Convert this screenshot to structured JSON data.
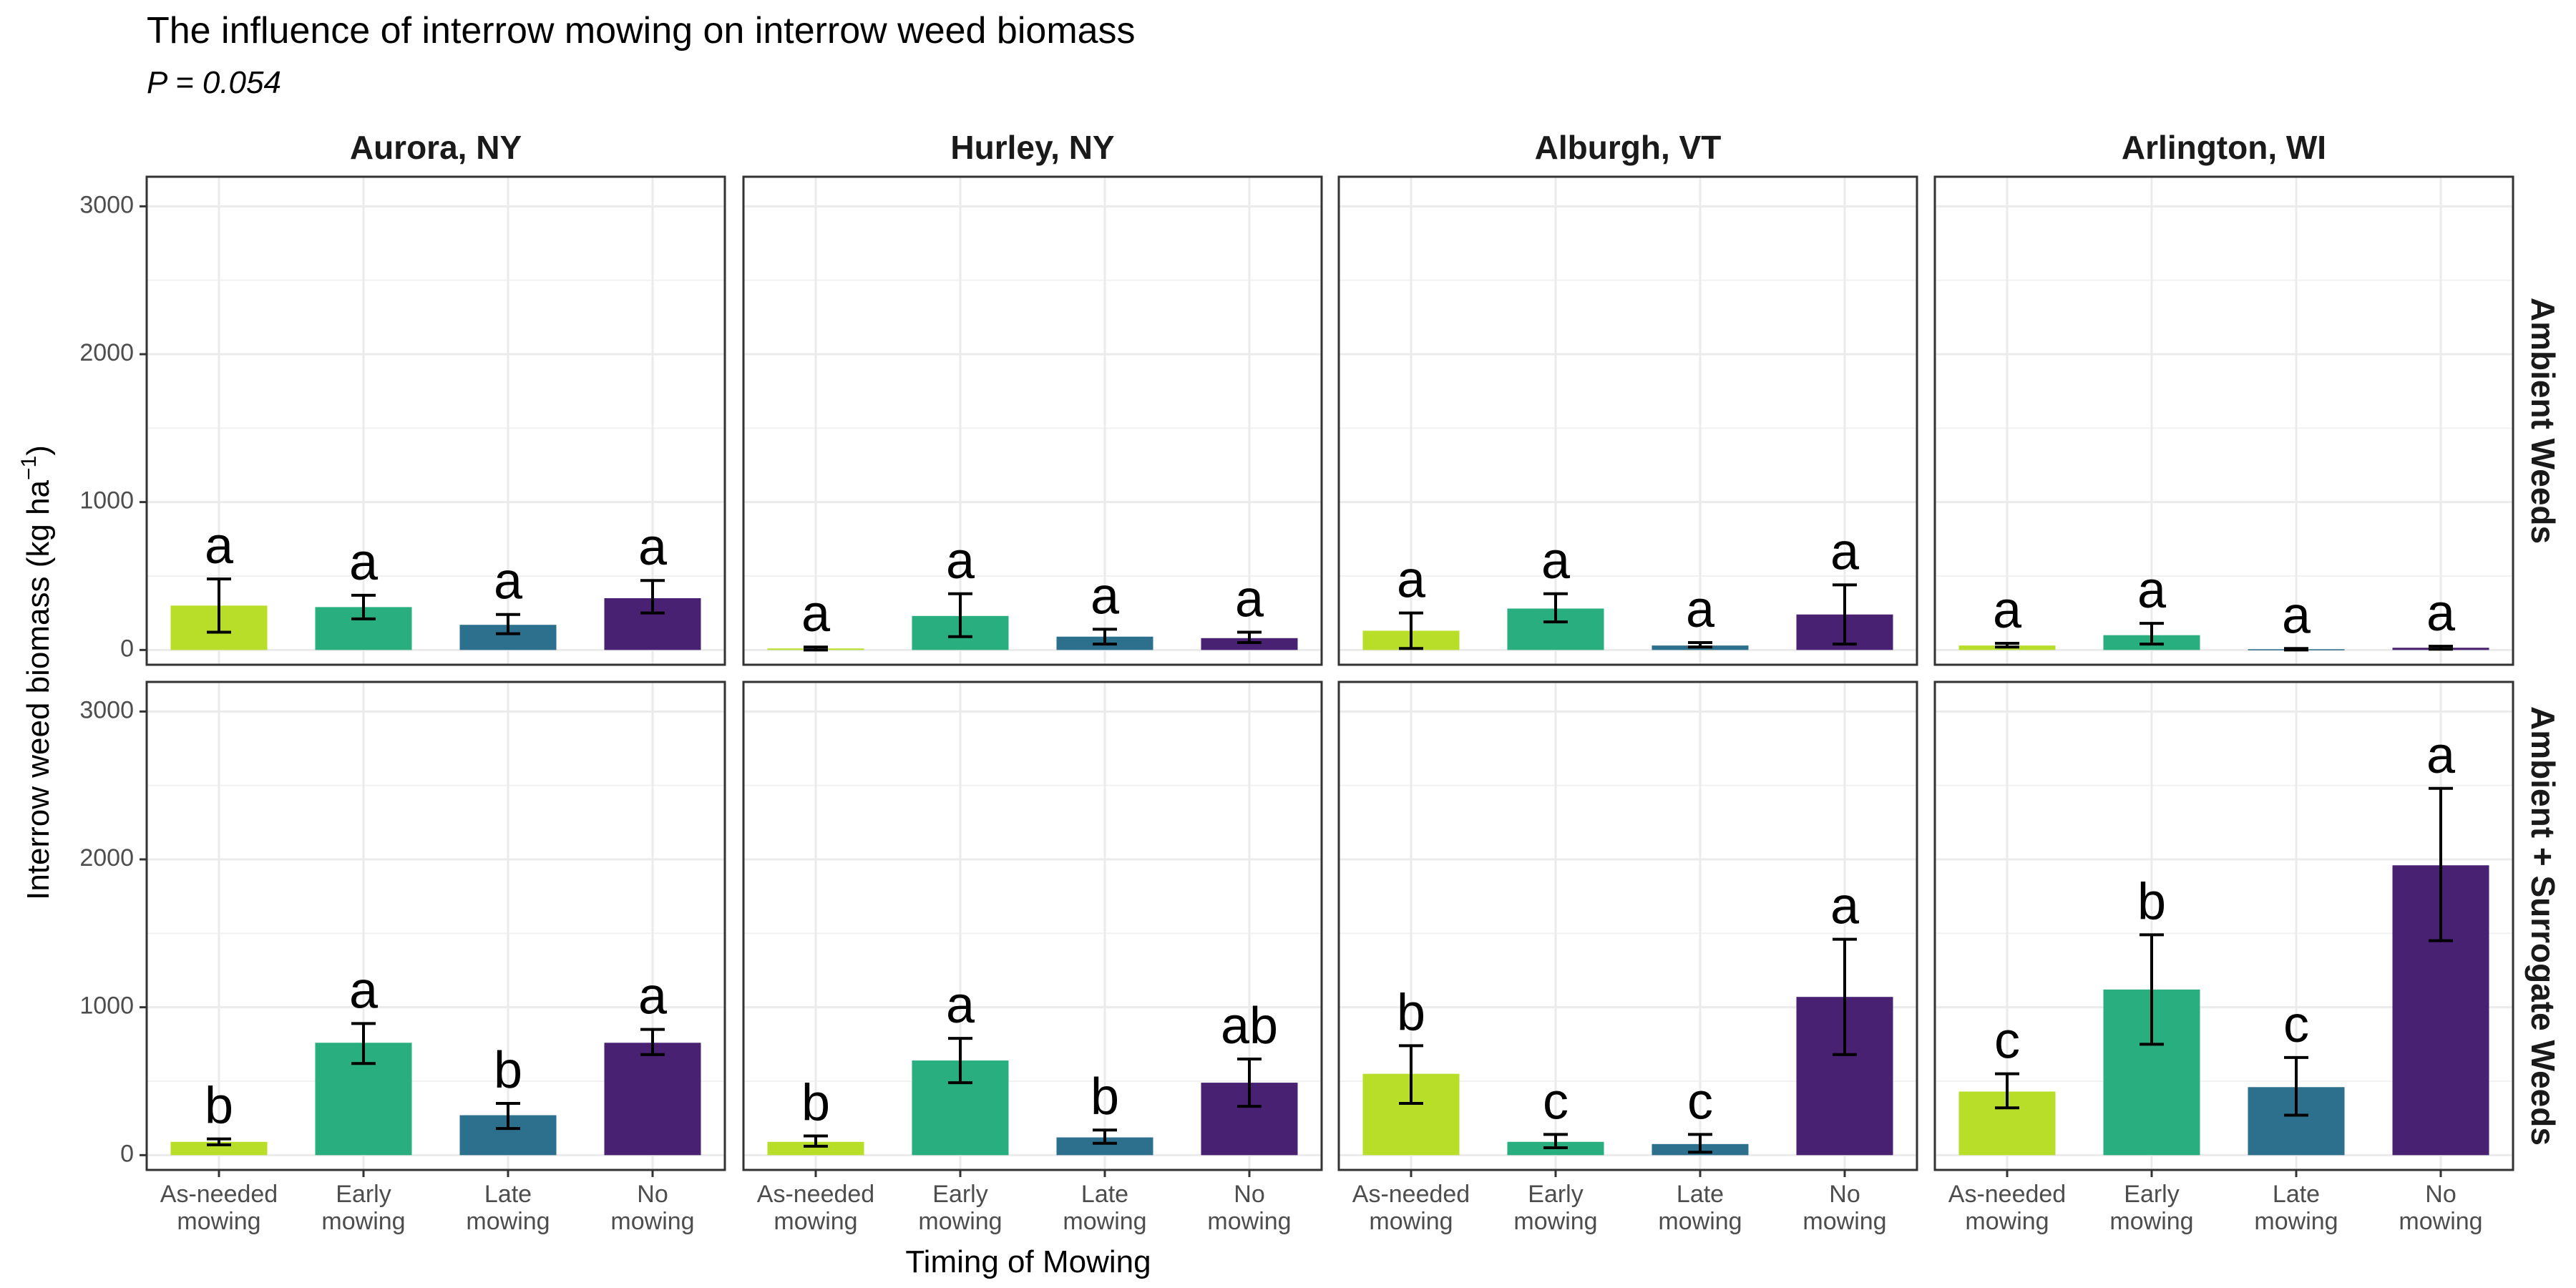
{
  "chart_data": {
    "type": "bar",
    "title": "The influence of interrow mowing on interrow weed biomass",
    "subtitle": "P = 0.054",
    "xlabel": "Timing of Mowing",
    "ylabel": "Interrow weed biomass (kg ha",
    "ylabel_sup": "−1",
    "ylabel_end": ")",
    "ylim": [
      -100,
      3200
    ],
    "yticks": [
      0,
      1000,
      2000,
      3000
    ],
    "categories": [
      [
        "As-needed",
        "mowing"
      ],
      [
        "Early",
        "mowing"
      ],
      [
        "Late",
        "mowing"
      ],
      [
        "No",
        "mowing"
      ]
    ],
    "colors": [
      "#b8de29",
      "#29af7f",
      "#2d708e",
      "#482173"
    ],
    "columns": [
      "Aurora, NY",
      "Hurley, NY",
      "Alburgh, VT",
      "Arlington, WI"
    ],
    "rows": [
      "Ambient Weeds",
      "Ambient + Surrogate Weeds"
    ],
    "grid": true,
    "panels": [
      {
        "column": "Aurora, NY",
        "row": "Ambient Weeds",
        "values": [
          300,
          290,
          170,
          350
        ],
        "lower": [
          120,
          210,
          110,
          250
        ],
        "upper": [
          480,
          370,
          240,
          470
        ],
        "letters": [
          "a",
          "a",
          "a",
          "a"
        ]
      },
      {
        "column": "Hurley, NY",
        "row": "Ambient Weeds",
        "values": [
          10,
          230,
          90,
          80
        ],
        "lower": [
          0,
          90,
          40,
          50
        ],
        "upper": [
          20,
          380,
          140,
          120
        ],
        "letters": [
          "a",
          "a",
          "a",
          "a"
        ]
      },
      {
        "column": "Alburgh, VT",
        "row": "Ambient Weeds",
        "values": [
          130,
          280,
          30,
          240
        ],
        "lower": [
          10,
          190,
          20,
          40
        ],
        "upper": [
          250,
          380,
          50,
          440
        ],
        "letters": [
          "a",
          "a",
          "a",
          "a"
        ]
      },
      {
        "column": "Arlington, WI",
        "row": "Ambient Weeds",
        "values": [
          30,
          100,
          5,
          15
        ],
        "lower": [
          20,
          40,
          0,
          5
        ],
        "upper": [
          45,
          180,
          10,
          25
        ],
        "letters": [
          "a",
          "a",
          "a",
          "a"
        ]
      },
      {
        "column": "Aurora, NY",
        "row": "Ambient + Surrogate Weeds",
        "values": [
          90,
          760,
          270,
          760
        ],
        "lower": [
          70,
          620,
          180,
          680
        ],
        "upper": [
          110,
          890,
          350,
          850
        ],
        "letters": [
          "b",
          "a",
          "b",
          "a"
        ]
      },
      {
        "column": "Hurley, NY",
        "row": "Ambient + Surrogate Weeds",
        "values": [
          90,
          640,
          120,
          490
        ],
        "lower": [
          60,
          490,
          80,
          330
        ],
        "upper": [
          130,
          790,
          170,
          650
        ],
        "letters": [
          "b",
          "a",
          "b",
          "ab"
        ]
      },
      {
        "column": "Alburgh, VT",
        "row": "Ambient + Surrogate Weeds",
        "values": [
          550,
          90,
          75,
          1070
        ],
        "lower": [
          350,
          50,
          20,
          680
        ],
        "upper": [
          740,
          140,
          140,
          1460
        ],
        "letters": [
          "b",
          "c",
          "c",
          "a"
        ]
      },
      {
        "column": "Arlington, WI",
        "row": "Ambient + Surrogate Weeds",
        "values": [
          430,
          1120,
          460,
          1960
        ],
        "lower": [
          320,
          750,
          270,
          1450
        ],
        "upper": [
          550,
          1490,
          660,
          2480
        ],
        "letters": [
          "c",
          "b",
          "c",
          "a"
        ]
      }
    ]
  }
}
